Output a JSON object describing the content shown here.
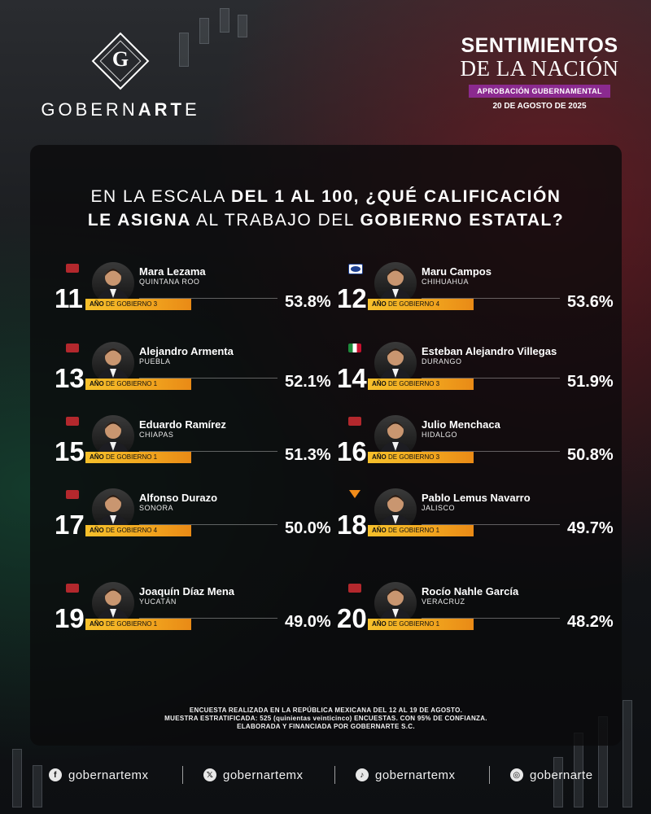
{
  "header": {
    "logo_letter": "G",
    "brand_pre": "GOBERN",
    "brand_bold": "ART",
    "brand_post": "E",
    "title_line1": "SENTIMIENTOS",
    "title_line2": "DE LA NACIÓN",
    "badge": "APROBACIÓN GUBERNAMENTAL",
    "date": "20 DE AGOSTO DE 2025"
  },
  "question": {
    "l1_a": "EN LA ESCALA ",
    "l1_b": "DEL 1 AL 100, ¿QUÉ CALIFICACIÓN",
    "l2_a": "LE ASIGNA",
    "l2_b": " AL TRABAJO DEL ",
    "l2_c": "GOBIERNO ESTATAL?"
  },
  "entries": [
    {
      "rank": "11",
      "name": "Mara Lezama",
      "state": "QUINTANA ROO",
      "year_label": "AÑO",
      "year_rest": " DE GOBIERNO 3",
      "pct": "53.8%",
      "party": "morena"
    },
    {
      "rank": "12",
      "name": "Maru Campos",
      "state": "CHIHUAHUA",
      "year_label": "AÑO",
      "year_rest": " DE GOBIERNO 4",
      "pct": "53.6%",
      "party": "pan"
    },
    {
      "rank": "13",
      "name": "Alejandro Armenta",
      "state": "PUEBLA",
      "year_label": "AÑO",
      "year_rest": " DE GOBIERNO 1",
      "pct": "52.1%",
      "party": "morena"
    },
    {
      "rank": "14",
      "name": "Esteban Alejandro Villegas",
      "state": "DURANGO",
      "year_label": "AÑO",
      "year_rest": " DE GOBIERNO 3",
      "pct": "51.9%",
      "party": "pri"
    },
    {
      "rank": "15",
      "name": "Eduardo Ramírez",
      "state": "CHIAPAS",
      "year_label": "AÑO",
      "year_rest": " DE GOBIERNO 1",
      "pct": "51.3%",
      "party": "morena"
    },
    {
      "rank": "16",
      "name": "Julio Menchaca",
      "state": "HIDALGO",
      "year_label": "AÑO",
      "year_rest": " DE GOBIERNO 3",
      "pct": "50.8%",
      "party": "morena"
    },
    {
      "rank": "17",
      "name": "Alfonso Durazo",
      "state": "SONORA",
      "year_label": "AÑO",
      "year_rest": " DE GOBIERNO 4",
      "pct": "50.0%",
      "party": "morena"
    },
    {
      "rank": "18",
      "name": "Pablo Lemus Navarro",
      "state": "JALISCO",
      "year_label": "AÑO",
      "year_rest": " DE GOBIERNO 1",
      "pct": "49.7%",
      "party": "mc"
    },
    {
      "rank": "19",
      "name": "Joaquín Díaz Mena",
      "state": "YUCATÁN",
      "year_label": "AÑO",
      "year_rest": " DE GOBIERNO 1",
      "pct": "49.0%",
      "party": "morena"
    },
    {
      "rank": "20",
      "name": "Rocío Nahle García",
      "state": "VERACRUZ",
      "year_label": "AÑO",
      "year_rest": " DE GOBIERNO 1",
      "pct": "48.2%",
      "party": "morena"
    }
  ],
  "footer": {
    "line1": "ENCUESTA REALIZADA EN LA REPÚBLICA MEXICANA DEL 12 AL 19 DE AGOSTO.",
    "line2": "MUESTRA ESTRATIFICADA: 525 (quinientas veinticinco) ENCUESTAS. CON 95% DE CONFIANZA.",
    "line3": "ELABORADA Y FINANCIADA POR GOBERNARTE S.C."
  },
  "socials": [
    {
      "icon": "facebook-icon",
      "glyph": "f",
      "handle": "gobernartemx"
    },
    {
      "icon": "x-icon",
      "glyph": "𝕏",
      "handle": "gobernartemx"
    },
    {
      "icon": "tiktok-icon",
      "glyph": "♪",
      "handle": "gobernartemx"
    },
    {
      "icon": "instagram-icon",
      "glyph": "◎",
      "handle": "gobernarte"
    }
  ],
  "colors": {
    "accent_bar": "#f1a51e",
    "badge": "#8b2a8f",
    "morena": "#b3282d",
    "pan": "#1d3f8f"
  }
}
